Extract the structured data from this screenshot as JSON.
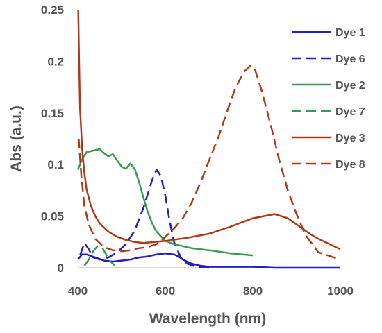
{
  "chart_data": {
    "type": "line",
    "title": "",
    "xlabel": "Wavelength (nm)",
    "ylabel": "Abs (a.u.)",
    "xlim": [
      400,
      1000
    ],
    "ylim": [
      0,
      0.25
    ],
    "xticks": [
      "400",
      "600",
      "800",
      "1000"
    ],
    "yticks": [
      "0",
      "0.05",
      "0.1",
      "0.15",
      "0.2",
      "0.25"
    ],
    "grid": false,
    "legend_position": "right",
    "series": [
      {
        "name": "Dye 1",
        "color": "#1f1fc8",
        "dash": "solid",
        "x": [
          400,
          410,
          420,
          440,
          460,
          480,
          500,
          520,
          540,
          560,
          580,
          600,
          620,
          630,
          640,
          650,
          660,
          680,
          700,
          750,
          800,
          850,
          900,
          950,
          1000
        ],
        "y": [
          0.008,
          0.013,
          0.013,
          0.01,
          0.007,
          0.006,
          0.007,
          0.008,
          0.01,
          0.011,
          0.013,
          0.014,
          0.013,
          0.011,
          0.008,
          0.006,
          0.004,
          0.002,
          0.001,
          0.001,
          0.001,
          0.0,
          0.0,
          0.0,
          0.0
        ]
      },
      {
        "name": "Dye 6",
        "color": "#1f1fc8",
        "dash": "dashed",
        "x": [
          405,
          415,
          425,
          435,
          450,
          470,
          490,
          510,
          530,
          550,
          570,
          580,
          590,
          600,
          610,
          620,
          635,
          650,
          670,
          700
        ],
        "y": [
          0.012,
          0.024,
          0.018,
          0.01,
          0.008,
          0.01,
          0.015,
          0.023,
          0.036,
          0.058,
          0.085,
          0.095,
          0.089,
          0.07,
          0.045,
          0.025,
          0.01,
          0.004,
          0.001,
          0.0
        ]
      },
      {
        "name": "Dye 2",
        "color": "#3a9a50",
        "dash": "solid",
        "x": [
          400,
          410,
          420,
          430,
          440,
          450,
          460,
          470,
          480,
          490,
          500,
          510,
          520,
          530,
          540,
          550,
          560,
          570,
          580,
          600,
          620,
          640,
          660,
          700,
          750,
          800
        ],
        "y": [
          0.095,
          0.105,
          0.112,
          0.113,
          0.114,
          0.115,
          0.111,
          0.108,
          0.11,
          0.104,
          0.098,
          0.096,
          0.101,
          0.096,
          0.083,
          0.068,
          0.054,
          0.043,
          0.035,
          0.026,
          0.023,
          0.021,
          0.019,
          0.017,
          0.014,
          0.012
        ]
      },
      {
        "name": "Dye 7",
        "color": "#3a9a50",
        "dash": "dashed",
        "x": [
          415,
          425,
          435,
          445,
          455,
          465,
          475,
          485
        ],
        "y": [
          0.002,
          0.008,
          0.016,
          0.021,
          0.02,
          0.013,
          0.006,
          0.002
        ]
      },
      {
        "name": "Dye 3",
        "color": "#b03818",
        "dash": "solid",
        "x": [
          401,
          403,
          405,
          410,
          415,
          420,
          430,
          440,
          450,
          470,
          490,
          510,
          530,
          550,
          600,
          650,
          700,
          750,
          800,
          850,
          880,
          900,
          930,
          950,
          1000
        ],
        "y": [
          0.25,
          0.2,
          0.155,
          0.115,
          0.092,
          0.076,
          0.06,
          0.05,
          0.043,
          0.035,
          0.03,
          0.027,
          0.025,
          0.024,
          0.026,
          0.029,
          0.033,
          0.04,
          0.048,
          0.052,
          0.048,
          0.042,
          0.033,
          0.028,
          0.018
        ]
      },
      {
        "name": "Dye 8",
        "color": "#b03818",
        "dash": "dashed",
        "x": [
          402,
          408,
          415,
          425,
          440,
          460,
          480,
          500,
          520,
          540,
          560,
          580,
          600,
          620,
          640,
          660,
          680,
          700,
          720,
          740,
          760,
          780,
          795,
          805,
          820,
          840,
          860,
          880,
          900,
          920,
          950,
          1000
        ],
        "y": [
          0.125,
          0.09,
          0.06,
          0.042,
          0.028,
          0.02,
          0.017,
          0.016,
          0.017,
          0.019,
          0.02,
          0.023,
          0.03,
          0.038,
          0.048,
          0.063,
          0.082,
          0.104,
          0.125,
          0.15,
          0.174,
          0.19,
          0.196,
          0.192,
          0.172,
          0.14,
          0.105,
          0.075,
          0.052,
          0.032,
          0.015,
          0.008
        ]
      }
    ]
  }
}
